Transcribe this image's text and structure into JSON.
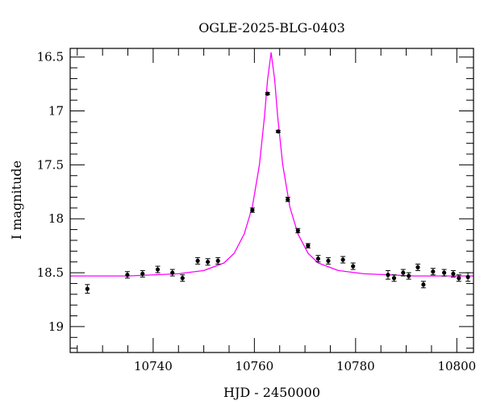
{
  "chart_data": {
    "type": "scatter",
    "title": "OGLE-2025-BLG-0403",
    "xlabel": "HJD - 2450000",
    "ylabel": "I magnitude",
    "xlim": [
      10723.6,
      10803.3
    ],
    "ylim": [
      19.24,
      16.42
    ],
    "y_inverted": true,
    "grid": false,
    "x_ticks": [
      10740,
      10760,
      10780,
      10800
    ],
    "x_tick_labels": [
      "10740",
      "10760",
      "10780",
      "10800"
    ],
    "x_minor_step": 5,
    "y_ticks": [
      16.5,
      17,
      17.5,
      18,
      18.5,
      19
    ],
    "y_tick_labels": [
      "16.5",
      "17",
      "17.5",
      "18",
      "18.5",
      "19"
    ],
    "y_minor_step": 0.1,
    "colors": {
      "data": "#000000",
      "model": "#ff00ff"
    },
    "series": [
      {
        "kind": "errorbar-points",
        "x": [
          10727.0,
          10734.9,
          10737.9,
          10740.9,
          10743.8,
          10745.8,
          10748.8,
          10750.8,
          10752.8,
          10759.6,
          10762.6,
          10764.7,
          10766.6,
          10768.6,
          10770.6,
          10772.6,
          10774.6,
          10777.5,
          10779.5,
          10786.4,
          10787.6,
          10789.4,
          10790.5,
          10792.3,
          10793.4,
          10795.3,
          10797.5,
          10799.3,
          10800.4,
          10802.2
        ],
        "y": [
          18.65,
          18.52,
          18.51,
          18.47,
          18.5,
          18.55,
          18.39,
          18.4,
          18.39,
          17.92,
          16.84,
          17.19,
          17.82,
          18.11,
          18.25,
          18.37,
          18.39,
          18.38,
          18.44,
          18.52,
          18.55,
          18.5,
          18.53,
          18.45,
          18.61,
          18.49,
          18.5,
          18.51,
          18.55,
          18.54
        ],
        "yerr": [
          0.04,
          0.03,
          0.03,
          0.03,
          0.03,
          0.03,
          0.03,
          0.03,
          0.03,
          0.02,
          0.01,
          0.01,
          0.02,
          0.02,
          0.02,
          0.03,
          0.03,
          0.03,
          0.03,
          0.04,
          0.03,
          0.03,
          0.03,
          0.03,
          0.03,
          0.03,
          0.03,
          0.03,
          0.03,
          0.04
        ]
      },
      {
        "kind": "model-line",
        "x": [
          10723.6,
          10735,
          10745,
          10750,
          10754,
          10756,
          10758,
          10759.6,
          10761,
          10762,
          10762.6,
          10763.3,
          10764,
          10764.6,
          10765.6,
          10767,
          10768.6,
          10770.6,
          10772.6,
          10776.6,
          10781.6,
          10791.6,
          10803.3
        ],
        "y": [
          18.53,
          18.53,
          18.51,
          18.48,
          18.41,
          18.32,
          18.14,
          17.89,
          17.5,
          17.05,
          16.71,
          16.46,
          16.71,
          17.05,
          17.5,
          17.89,
          18.14,
          18.32,
          18.41,
          18.48,
          18.51,
          18.53,
          18.53
        ]
      }
    ]
  }
}
